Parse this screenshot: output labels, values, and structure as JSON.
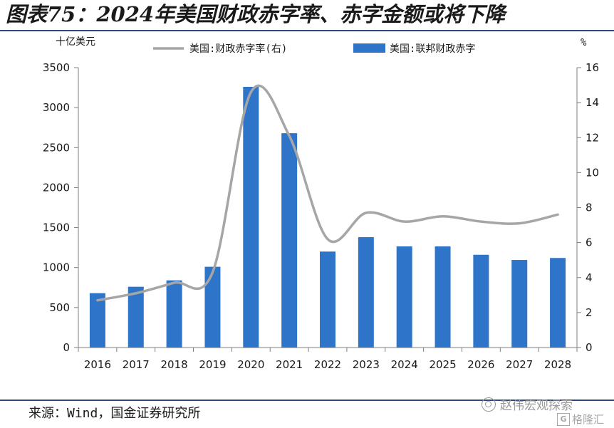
{
  "header": {
    "title": "图表75：2024年美国财政赤字率、赤字金额或将下降"
  },
  "footer": {
    "source": "来源：Wind，国金证券研究所",
    "watermark": "赵伟宏观探索",
    "watermark_sub": "格隆汇",
    "watermark_sub_logo": "G"
  },
  "chart_data": {
    "type": "bar",
    "categories": [
      "2016",
      "2017",
      "2018",
      "2019",
      "2020",
      "2021",
      "2022",
      "2023",
      "2024",
      "2025",
      "2026",
      "2027",
      "2028"
    ],
    "left_unit": "十亿美元",
    "right_unit": "%",
    "ylim": [
      0,
      3500
    ],
    "y2lim": [
      0,
      16
    ],
    "yticks": [
      "3500",
      "3000",
      "2500",
      "2000",
      "1500",
      "1000",
      "500",
      "0"
    ],
    "y2ticks": [
      "16",
      "14",
      "12",
      "10",
      "8",
      "6",
      "4",
      "2",
      "0"
    ],
    "grid": false,
    "legend_position": "top",
    "series": [
      {
        "name": "美国:联邦财政赤字",
        "type": "bar",
        "axis": "left",
        "color": "#2e74c9",
        "values": [
          680,
          760,
          840,
          1010,
          3260,
          2680,
          1200,
          1380,
          1265,
          1265,
          1160,
          1095,
          1120
        ]
      },
      {
        "name": "美国:财政赤字率(右)",
        "type": "line",
        "axis": "right",
        "color": "#a6a6a6",
        "values": [
          2.7,
          3.1,
          3.7,
          4.3,
          14.6,
          12.1,
          6.2,
          7.7,
          7.2,
          7.5,
          7.2,
          7.1,
          7.6
        ]
      }
    ]
  }
}
